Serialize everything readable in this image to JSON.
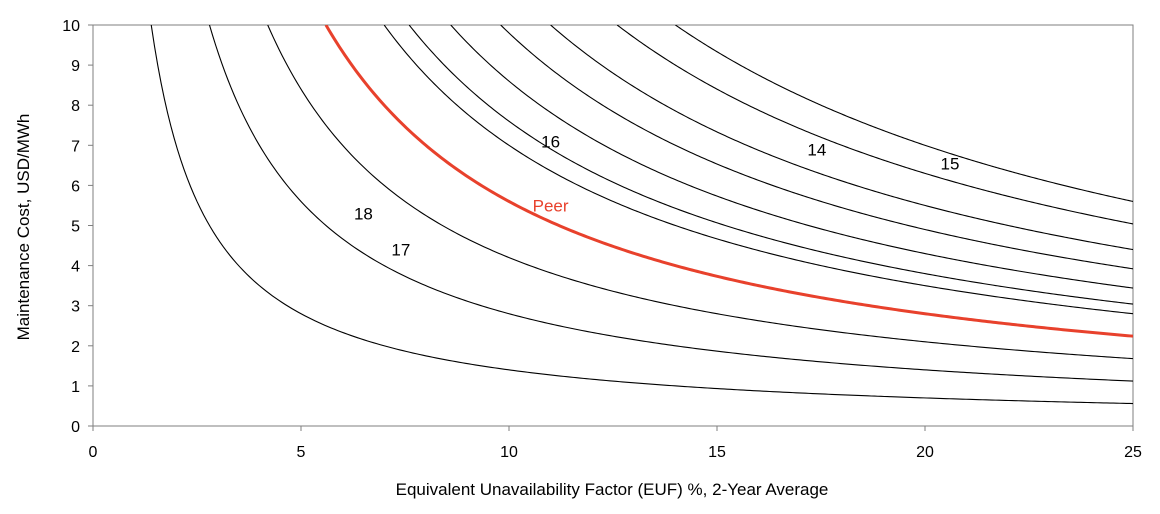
{
  "chart_data": {
    "type": "line",
    "title": "",
    "xlabel": "Equivalent Unavailability Factor (EUF) %, 2-Year Average",
    "ylabel": "Maintenance Cost, USD/MWh",
    "xlim": [
      0,
      25
    ],
    "ylim": [
      0,
      10
    ],
    "xticks": [
      "0",
      "5",
      "10",
      "15",
      "20",
      "25"
    ],
    "yticks": [
      "0",
      "1",
      "2",
      "3",
      "4",
      "5",
      "6",
      "7",
      "8",
      "9",
      "10"
    ],
    "grid": false,
    "legend": "none",
    "series_function": "y = k / x",
    "series": [
      {
        "k": 14,
        "color": "#000000"
      },
      {
        "k": 28,
        "color": "#000000"
      },
      {
        "k": 42,
        "color": "#000000"
      },
      {
        "k": 56,
        "color": "#e8412c",
        "highlight": true
      },
      {
        "k": 70,
        "color": "#000000"
      },
      {
        "k": 76,
        "color": "#000000"
      },
      {
        "k": 86,
        "color": "#000000"
      },
      {
        "k": 98,
        "color": "#000000"
      },
      {
        "k": 110,
        "color": "#000000"
      },
      {
        "k": 126,
        "color": "#000000"
      },
      {
        "k": 140,
        "color": "#000000"
      }
    ],
    "annotations": [
      {
        "text": "18",
        "x": 6.5,
        "y": 5.15,
        "color": "#000000"
      },
      {
        "text": "17",
        "x": 7.4,
        "y": 4.25,
        "color": "#000000"
      },
      {
        "text": "16",
        "x": 11.0,
        "y": 6.95,
        "color": "#000000"
      },
      {
        "text": "Peer",
        "x": 11.0,
        "y": 5.35,
        "color": "#e8412c"
      },
      {
        "text": "14",
        "x": 17.4,
        "y": 6.75,
        "color": "#000000"
      },
      {
        "text": "15",
        "x": 20.6,
        "y": 6.4,
        "color": "#000000"
      }
    ]
  }
}
